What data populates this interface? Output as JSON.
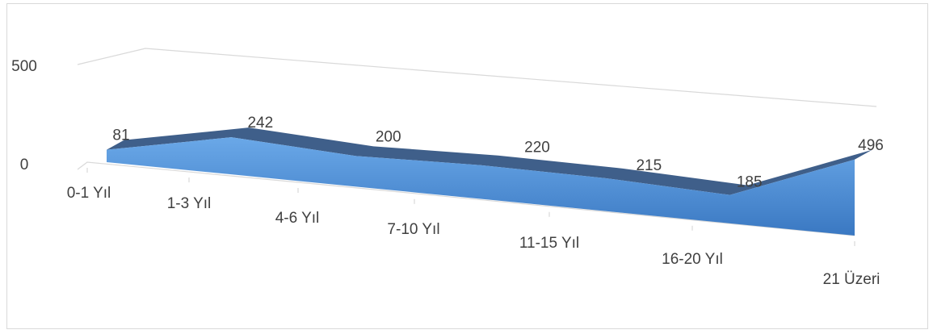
{
  "chart_data": {
    "type": "area",
    "three_d": true,
    "categories": [
      "0-1 Yıl",
      "1-3 Yıl",
      "4-6 Yıl",
      "7-10 Yıl",
      "11-15 Yıl",
      "16-20 Yıl",
      "21 Üzeri"
    ],
    "series": [
      {
        "values": [
          81,
          242,
          200,
          220,
          215,
          185,
          496
        ]
      }
    ],
    "y_ticks": [
      "0",
      "500"
    ],
    "ylim": [
      0,
      500
    ],
    "grid": true,
    "legend": "none",
    "data_labels": true,
    "colors": {
      "area_front_top": "#6aa8e8",
      "area_front_bottom": "#3a78c2",
      "area_top_surface": "#3f5f8a",
      "gridline": "#d9d9d9",
      "axis": "#d9d9d9",
      "text": "#404040"
    }
  }
}
